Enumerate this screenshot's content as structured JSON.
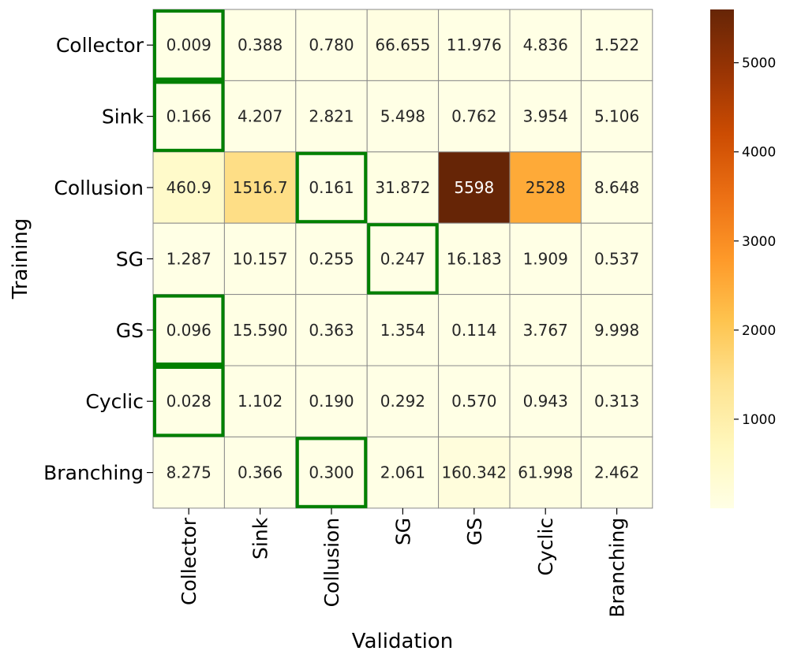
{
  "chart_data": {
    "type": "heatmap",
    "title": "",
    "xlabel": "Validation",
    "ylabel": "Training",
    "x_categories": [
      "Collector",
      "Sink",
      "Collusion",
      "SG",
      "GS",
      "Cyclic",
      "Branching"
    ],
    "y_categories": [
      "Collector",
      "Sink",
      "Collusion",
      "SG",
      "GS",
      "Cyclic",
      "Branching"
    ],
    "values": [
      [
        0.009,
        0.388,
        0.78,
        66.655,
        11.976,
        4.836,
        1.522
      ],
      [
        0.166,
        4.207,
        2.821,
        5.498,
        0.762,
        3.954,
        5.106
      ],
      [
        460.9,
        1516.7,
        0.161,
        31.872,
        5598,
        2528,
        8.648
      ],
      [
        1.287,
        10.157,
        0.255,
        0.247,
        16.183,
        1.909,
        0.537
      ],
      [
        0.096,
        15.59,
        0.363,
        1.354,
        0.114,
        3.767,
        9.998
      ],
      [
        0.028,
        1.102,
        0.19,
        0.292,
        0.57,
        0.943,
        0.313
      ],
      [
        8.275,
        0.366,
        0.3,
        2.061,
        160.342,
        61.998,
        2.462
      ]
    ],
    "annotations": [
      [
        "0.009",
        "0.388",
        "0.780",
        "66.655",
        "11.976",
        "4.836",
        "1.522"
      ],
      [
        "0.166",
        "4.207",
        "2.821",
        "5.498",
        "0.762",
        "3.954",
        "5.106"
      ],
      [
        "460.9",
        "1516.7",
        "0.161",
        "31.872",
        "5598",
        "2528",
        "8.648"
      ],
      [
        "1.287",
        "10.157",
        "0.255",
        "0.247",
        "16.183",
        "1.909",
        "0.537"
      ],
      [
        "0.096",
        "15.590",
        "0.363",
        "1.354",
        "0.114",
        "3.767",
        "9.998"
      ],
      [
        "0.028",
        "1.102",
        "0.190",
        "0.292",
        "0.570",
        "0.943",
        "0.313"
      ],
      [
        "8.275",
        "0.366",
        "0.300",
        "2.061",
        "160.342",
        "61.998",
        "2.462"
      ]
    ],
    "highlighted_cells": [
      [
        0,
        0
      ],
      [
        1,
        0
      ],
      [
        2,
        2
      ],
      [
        3,
        3
      ],
      [
        4,
        0
      ],
      [
        5,
        0
      ],
      [
        6,
        2
      ]
    ],
    "highlight_color": "#008000",
    "colorbar": {
      "range": [
        0,
        5598
      ],
      "ticks": [
        1000,
        2000,
        3000,
        4000,
        5000
      ],
      "colormap": "YlOrBr",
      "stops": [
        "#ffffe5",
        "#fff7bc",
        "#fee391",
        "#fec44f",
        "#fe9929",
        "#ec7014",
        "#cc4c02",
        "#993404",
        "#662506"
      ]
    }
  }
}
